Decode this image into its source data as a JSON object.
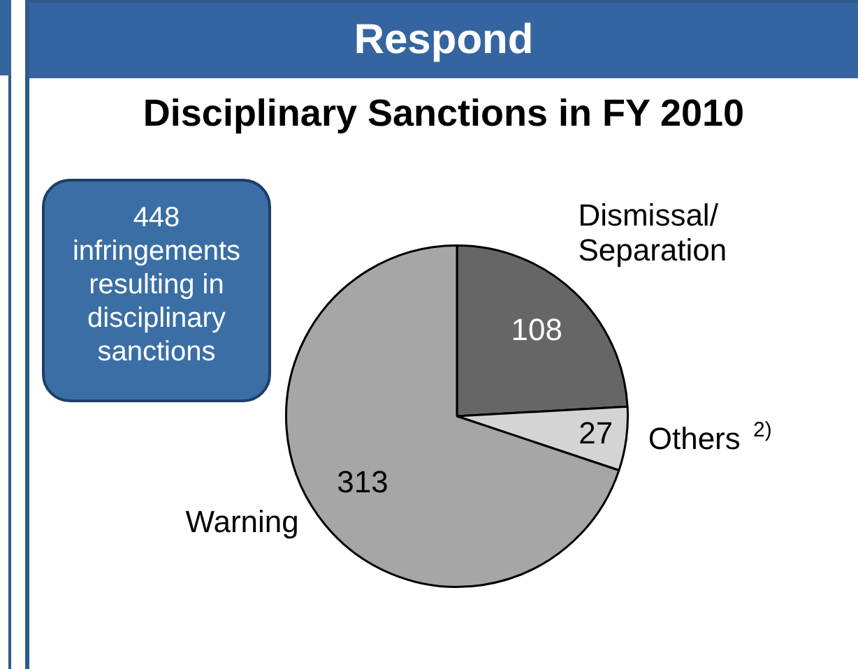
{
  "chart_data": {
    "type": "pie",
    "title": "Respond",
    "subtitle": "Disciplinary Sanctions in FY 2010",
    "annotations": [
      "448 infringements resulting in disciplinary sanctions"
    ],
    "categories": [
      "Dismissal/Separation",
      "Others $^{2)}$",
      "Warning"
    ],
    "values": [
      108,
      27,
      313
    ],
    "colors": [
      "#666666",
      "#d4d4d4",
      "#a6a6a6"
    ],
    "data_labels": true,
    "legend": false
  }
}
